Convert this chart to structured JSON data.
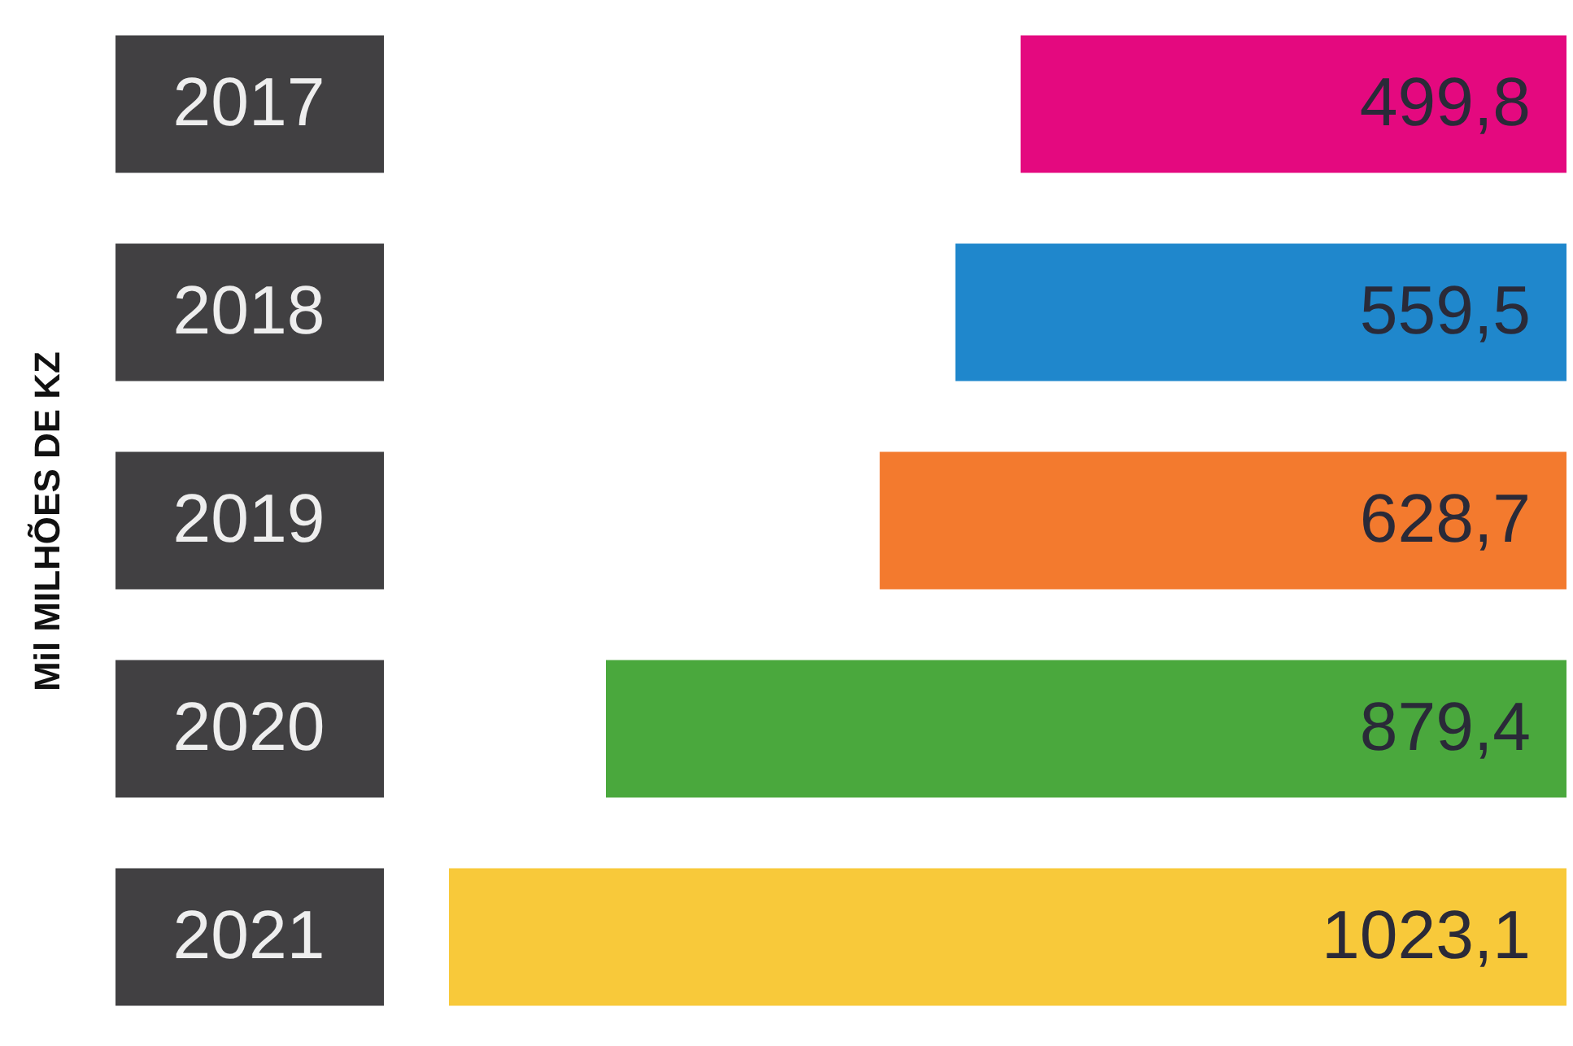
{
  "chart_data": {
    "type": "bar",
    "orientation": "horizontal",
    "ylabel": "Mil MILHÕES DE KZ",
    "categories": [
      "2017",
      "2018",
      "2019",
      "2020",
      "2021"
    ],
    "values": [
      499.8,
      559.5,
      628.7,
      879.4,
      1023.1
    ],
    "value_labels": [
      "499,8",
      "559,5",
      "628,7",
      "879,4",
      "1023,1"
    ],
    "colors": [
      "#e4097f",
      "#1f87cc",
      "#f37a2e",
      "#4aa83d",
      "#f8c93a"
    ]
  }
}
